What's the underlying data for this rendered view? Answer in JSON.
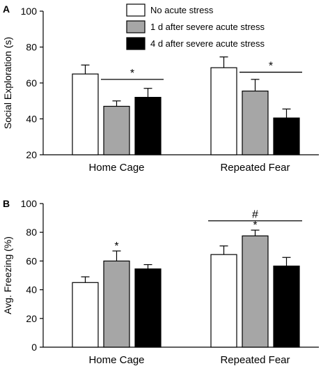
{
  "chart_data": [
    {
      "type": "bar",
      "panel": "A",
      "ylabel": "Social Exploration (s)",
      "ylim": [
        20,
        100
      ],
      "yticks": [
        "20",
        "40",
        "60",
        "80",
        "100"
      ],
      "categories": [
        "Home Cage",
        "Repeated Fear"
      ],
      "series": [
        {
          "name": "No acute stress",
          "color": "#ffffff",
          "values": [
            65,
            68.5
          ],
          "errors": [
            5,
            6
          ]
        },
        {
          "name": "1 d after severe acute stress",
          "color": "#a6a6a6",
          "values": [
            47,
            55.5
          ],
          "errors": [
            3,
            6.5
          ]
        },
        {
          "name": "4 d after severe acute stress",
          "color": "#000000",
          "values": [
            52,
            40.5
          ],
          "errors": [
            5,
            5
          ]
        }
      ],
      "annotations": [
        {
          "label": "*",
          "category": 0,
          "from_series": 1,
          "to_series": 2,
          "y": 62
        },
        {
          "label": "*",
          "category": 1,
          "from_series": 1,
          "to_series": 2,
          "y": 66
        }
      ],
      "legend_position": "top-center"
    },
    {
      "type": "bar",
      "panel": "B",
      "ylabel": "Avg. Freezing (%)",
      "ylim": [
        0,
        100
      ],
      "yticks": [
        "0",
        "20",
        "40",
        "60",
        "80",
        "100"
      ],
      "categories": [
        "Home Cage",
        "Repeated Fear"
      ],
      "series": [
        {
          "name": "No acute stress",
          "color": "#ffffff",
          "values": [
            45,
            64.5
          ],
          "errors": [
            4,
            6
          ]
        },
        {
          "name": "1 d after severe acute stress",
          "color": "#a6a6a6",
          "values": [
            60,
            77.5
          ],
          "errors": [
            7,
            4
          ]
        },
        {
          "name": "4 d after severe acute stress",
          "color": "#000000",
          "values": [
            54.5,
            56.5
          ],
          "errors": [
            3,
            6
          ]
        }
      ],
      "annotations": [
        {
          "label": "*",
          "category": 0,
          "series": 1
        },
        {
          "label": "*",
          "category": 1,
          "series": 1
        },
        {
          "label": "#",
          "category": 1,
          "from_series": 0,
          "to_series": 2,
          "y": 88
        }
      ]
    }
  ]
}
